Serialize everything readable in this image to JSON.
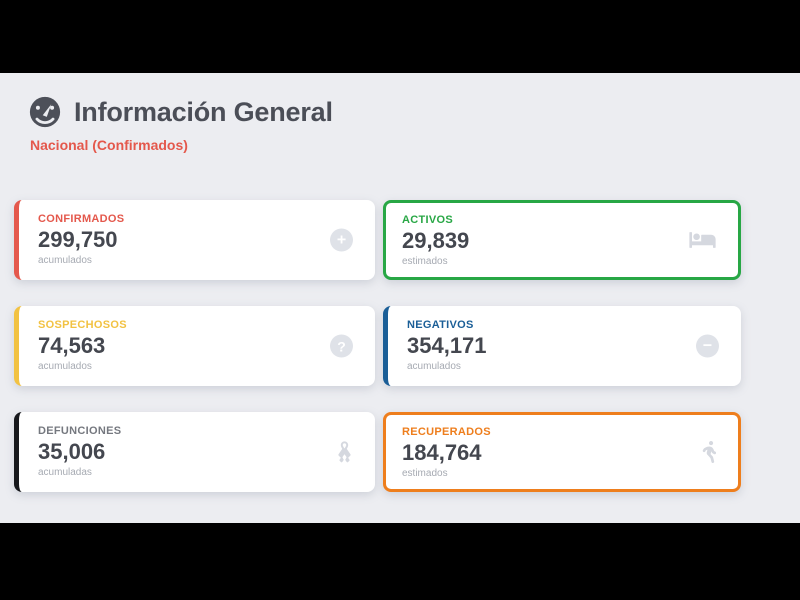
{
  "page": {
    "title": "Información General",
    "subtitle": "Nacional (Confirmados)",
    "header_icon": "gauge-icon",
    "background_color": "#ECEDF1",
    "letterbox_color": "#000000"
  },
  "cards": [
    {
      "id": "confirmados",
      "label": "CONFIRMADOS",
      "value": "299,750",
      "note": "acumulados",
      "accent_color": "#E4584C",
      "label_color": "#E4584C",
      "border_style": "left",
      "icon": "plus-circle-icon"
    },
    {
      "id": "activos",
      "label": "ACTIVOS",
      "value": "29,839",
      "note": "estimados",
      "accent_color": "#28A745",
      "label_color": "#28A745",
      "border_style": "full",
      "icon": "bed-icon"
    },
    {
      "id": "sospechosos",
      "label": "SOSPECHOSOS",
      "value": "74,563",
      "note": "acumulados",
      "accent_color": "#F2C242",
      "label_color": "#F2C242",
      "border_style": "left",
      "icon": "question-circle-icon"
    },
    {
      "id": "negativos",
      "label": "NEGATIVOS",
      "value": "354,171",
      "note": "acumulados",
      "accent_color": "#1A5E97",
      "label_color": "#1A5E97",
      "border_style": "left",
      "icon": "minus-circle-icon"
    },
    {
      "id": "defunciones",
      "label": "DEFUNCIONES",
      "value": "35,006",
      "note": "acumuladas",
      "accent_color": "#17181C",
      "label_color": "#75787F",
      "border_style": "left",
      "icon": "ribbon-icon"
    },
    {
      "id": "recuperados",
      "label": "RECUPERADOS",
      "value": "184,764",
      "note": "estimados",
      "accent_color": "#EE7E1D",
      "label_color": "#EE7E1D",
      "border_style": "full",
      "icon": "walking-icon"
    }
  ]
}
